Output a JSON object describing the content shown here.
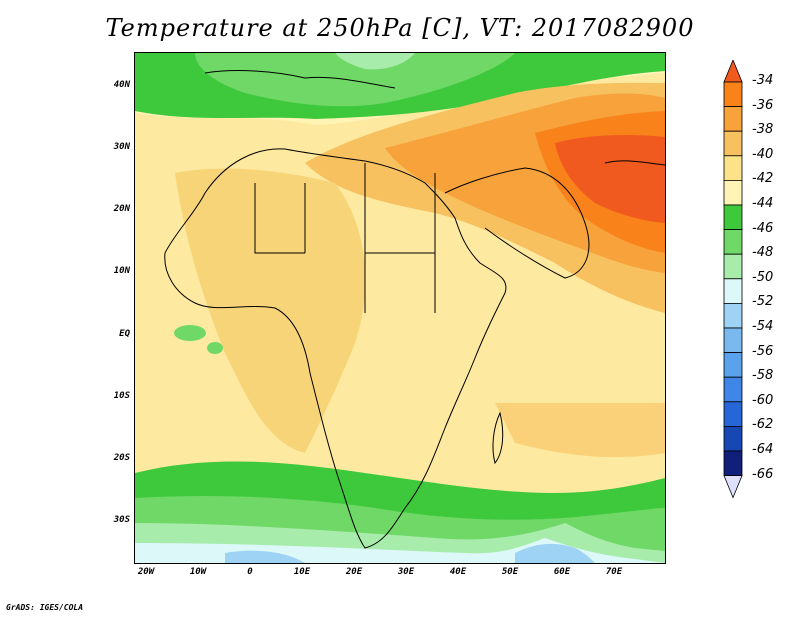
{
  "title": "Temperature at 250hPa [C], VT: 2017082900",
  "credit": "GrADS: IGES/COLA",
  "map": {
    "region": "Africa and Middle East",
    "variable": "Temperature at 250hPa",
    "units": "C",
    "lon_range": [
      -22,
      80
    ],
    "lat_range": [
      -37,
      45
    ],
    "lat_labels": [
      "40N",
      "30N",
      "20N",
      "10N",
      "EQ",
      "10S",
      "20S",
      "30S"
    ],
    "lon_labels": [
      "20W",
      "10W",
      "0",
      "10E",
      "20E",
      "30E",
      "40E",
      "50E",
      "60E",
      "70E"
    ]
  },
  "colorbar": {
    "levels": [
      "-34",
      "-36",
      "-38",
      "-40",
      "-42",
      "-44",
      "-46",
      "-48",
      "-50",
      "-52",
      "-54",
      "-56",
      "-58",
      "-60",
      "-62",
      "-64",
      "-66"
    ],
    "colors": [
      "#f05a1e",
      "#f9821a",
      "#f7a23a",
      "#f8c15f",
      "#fce38a",
      "#fff3b5",
      "#3ec93c",
      "#6fd866",
      "#a7ecaa",
      "#dcf8f8",
      "#9fd3f5",
      "#79b9ef",
      "#5aa2eb",
      "#3f86e7",
      "#2766d6",
      "#1747b3",
      "#10207a",
      "#dfe0fb"
    ],
    "extend": "both"
  }
}
